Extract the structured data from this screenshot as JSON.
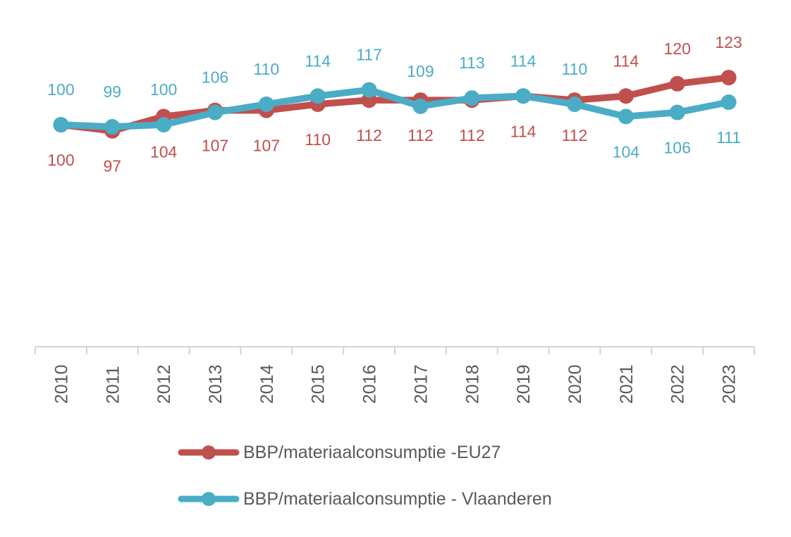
{
  "chart_data": {
    "type": "line",
    "title": "",
    "categories": [
      "2010",
      "2011",
      "2012",
      "2013",
      "2014",
      "2015",
      "2016",
      "2017",
      "2018",
      "2019",
      "2020",
      "2021",
      "2022",
      "2023"
    ],
    "series": [
      {
        "name": "BBP/materiaalconsumptie -EU27",
        "color": "#C0504D",
        "values": [
          100,
          97,
          104,
          107,
          107,
          110,
          112,
          112,
          112,
          114,
          112,
          114,
          120,
          123
        ],
        "label_sides": [
          "below",
          "below",
          "below",
          "below",
          "below",
          "below",
          "below",
          "below",
          "below",
          "below",
          "below",
          "above",
          "above",
          "above"
        ]
      },
      {
        "name": "BBP/materiaalconsumptie - Vlaanderen",
        "color": "#4BACC6",
        "values": [
          100,
          99,
          100,
          106,
          110,
          114,
          117,
          109,
          113,
          114,
          110,
          104,
          106,
          111
        ],
        "label_sides": [
          "above",
          "above",
          "above",
          "above",
          "above",
          "above",
          "above",
          "above",
          "above",
          "above",
          "above",
          "below",
          "below",
          "below"
        ]
      }
    ],
    "xlabel": "",
    "ylabel": "",
    "ylim": [
      90,
      130
    ],
    "gridlines": false,
    "y_axis_shown": false,
    "data_labels_shown": true,
    "x_axis": {
      "line_color": "#D3D3D3",
      "tick_color": "#D3D3D3",
      "label_color": "#595959",
      "labels_rotated_degrees": 90
    },
    "legend_position": "bottom-left"
  },
  "legend": {
    "items": [
      {
        "label": "BBP/materiaalconsumptie -EU27"
      },
      {
        "label": "BBP/materiaalconsumptie - Vlaanderen"
      }
    ]
  }
}
